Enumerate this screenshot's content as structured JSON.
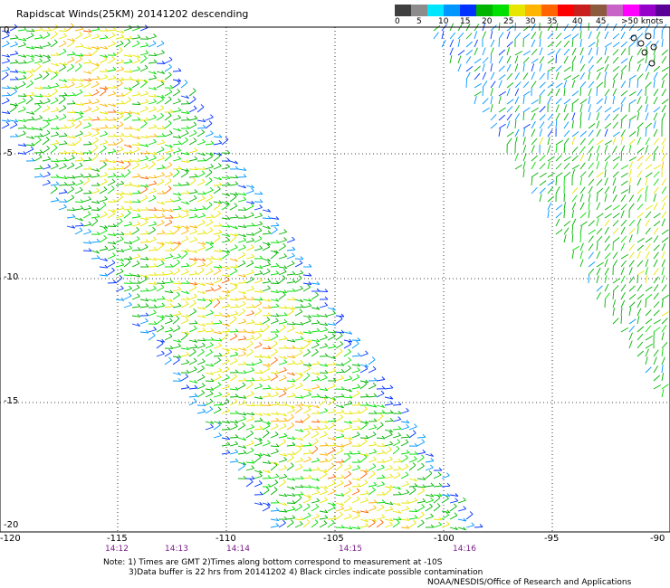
{
  "title": "Rapidscat Winds(25KM) 20141202 descending",
  "legend": {
    "colors": [
      "#3f3f3f",
      "#8c8c8c",
      "#00e6ff",
      "#0096ff",
      "#0032ff",
      "#00b400",
      "#00e000",
      "#e6e600",
      "#ffb400",
      "#ff6400",
      "#ff0000",
      "#c81e1e",
      "#8c5a3c",
      "#c864c8",
      "#ff00ff",
      "#9600c8",
      "#5a0096"
    ],
    "ticks": [
      "0",
      "5",
      "10",
      "15",
      "20",
      "25",
      "30",
      "35",
      "40",
      "45",
      ">50 knots"
    ]
  },
  "map": {
    "lon_labels": [
      "-120",
      "-115",
      "-110",
      "-105",
      "-100",
      "-95",
      "-90"
    ],
    "lat_labels": [
      "0",
      "-5",
      "-10",
      "-15",
      "-20"
    ],
    "time_labels": [
      "14:12",
      "14:13",
      "14:14",
      "14:15",
      "14:16"
    ]
  },
  "notes": {
    "line1": "Note: 1) Times are GMT 2)Times along bottom correspond to measurement at -10S",
    "line2": "3)Data buffer is 22 hrs from 20141202 4) Black circles indicate possible contamination",
    "credit": "NOAA/NESDIS/Office of Research and Applications"
  }
}
